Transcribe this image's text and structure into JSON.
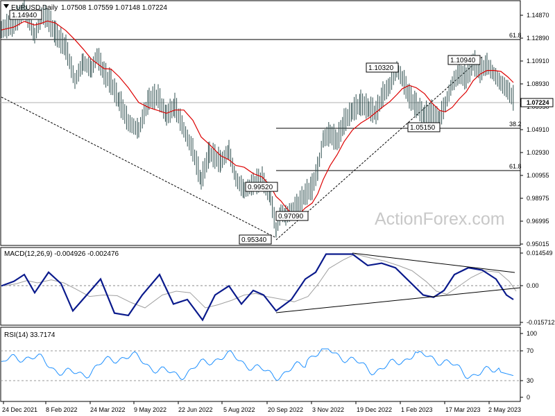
{
  "header": {
    "symbol_label": "EURUSD,Daily",
    "ohlc": "1.07508 1.07559 1.07148 1.07224"
  },
  "watermark": "ActionForex.com",
  "price_axis": {
    "ticks": [
      "1.14870",
      "1.12890",
      "1.10910",
      "1.08930",
      "1.06950",
      "1.04910",
      "1.02930",
      "1.00955",
      "0.98975",
      "0.96995",
      "0.95015"
    ],
    "current_price_label": "1.07224"
  },
  "fib_labels": {
    "top_618": "61.8",
    "mid_382": "38.2",
    "low_618": "61.8"
  },
  "price_annotations": [
    "1.14940",
    "1.10320",
    "1.10940",
    "1.05150",
    "0.99520",
    "0.97090",
    "0.95340"
  ],
  "macd": {
    "label": "MACD(12,26,9) -0.004926 -0.002476",
    "ticks": [
      "0.014549",
      "0.00",
      "-0.015712"
    ]
  },
  "rsi": {
    "label": "RSI(14) 33.7174",
    "ticks": [
      "100",
      "70",
      "30",
      "0"
    ]
  },
  "x_axis": {
    "dates": [
      "24 Dec 2021",
      "8 Feb 2022",
      "24 Mar 2022",
      "9 May 2022",
      "22 Jun 2022",
      "5 Aug 2022",
      "20 Sep 2022",
      "3 Nov 2022",
      "19 Dec 2022",
      "1 Feb 2023",
      "17 Mar 2023",
      "2 May 2023"
    ]
  },
  "colors": {
    "price": "#2f4f4f",
    "ma": "#dd0000",
    "macd": "#0a1a8c",
    "signal": "#a0a0a0",
    "rsi": "#1e90ff"
  },
  "chart_data": {
    "type": "line",
    "title": "EURUSD,Daily",
    "x": [
      "24 Dec 2021",
      "8 Feb 2022",
      "24 Mar 2022",
      "9 May 2022",
      "22 Jun 2022",
      "5 Aug 2022",
      "20 Sep 2022",
      "3 Nov 2022",
      "19 Dec 2022",
      "1 Feb 2023",
      "17 Mar 2023",
      "2 May 2023"
    ],
    "series": [
      {
        "name": "",
        "values": [
          1.131,
          1.142,
          1.098,
          1.055,
          1.054,
          1.022,
          0.987,
          0.997,
          1.061,
          1.085,
          1.087,
          1.099
        ]
      }
    ],
    "ylim": [
      0.948,
      1.153
    ],
    "levels": [
      {
        "label": "61.8",
        "value": 1.129
      },
      {
        "label": "38.2",
        "value": 1.0497
      },
      {
        "label": "61.8",
        "value": 1.011
      }
    ],
    "annotations": [
      {
        "label": "1.14940",
        "value": 1.1494
      },
      {
        "label": "1.10320",
        "value": 1.1032
      },
      {
        "label": "1.10940",
        "value": 1.1094
      },
      {
        "label": "1.05150",
        "value": 1.0515
      },
      {
        "label": "0.99520",
        "value": 0.9952
      },
      {
        "label": "0.97090",
        "value": 0.9709
      },
      {
        "label": "0.95340",
        "value": 0.9534
      }
    ],
    "macd_ylim": [
      -0.017,
      0.016
    ],
    "rsi_ylim": [
      0,
      100
    ],
    "rsi_levels": [
      70,
      30
    ]
  }
}
